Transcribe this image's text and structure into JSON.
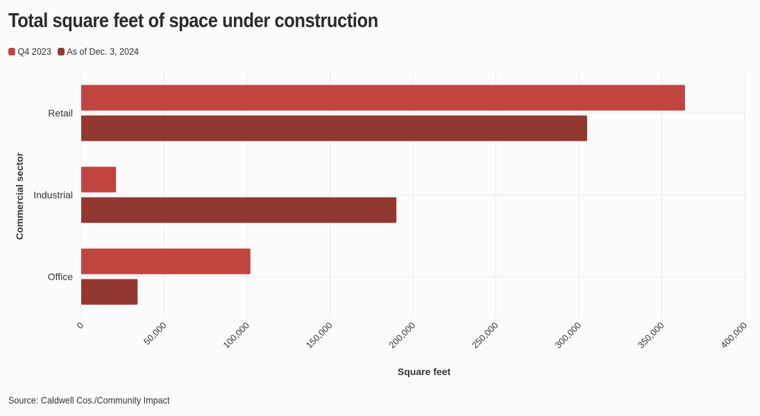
{
  "chart_data": {
    "type": "bar",
    "orientation": "horizontal",
    "title": "Total square feet of space under construction",
    "xlabel": "Square feet",
    "ylabel": "Commercial sector",
    "categories": [
      "Retail",
      "Industrial",
      "Office"
    ],
    "series": [
      {
        "name": "Q4 2023",
        "color": "#c1453f",
        "values": [
          364000,
          21000,
          102000
        ]
      },
      {
        "name": "As of Dec. 3, 2024",
        "color": "#933830",
        "values": [
          305000,
          190000,
          34000
        ]
      }
    ],
    "xlim": [
      0,
      400000
    ],
    "xticks": [
      "0",
      "50,000",
      "100,000",
      "150,000",
      "200,000",
      "250,000",
      "300,000",
      "350,000",
      "400,000"
    ],
    "grid": true,
    "legend": "top-left"
  },
  "source": "Source: Caldwell Cos./Community Impact"
}
